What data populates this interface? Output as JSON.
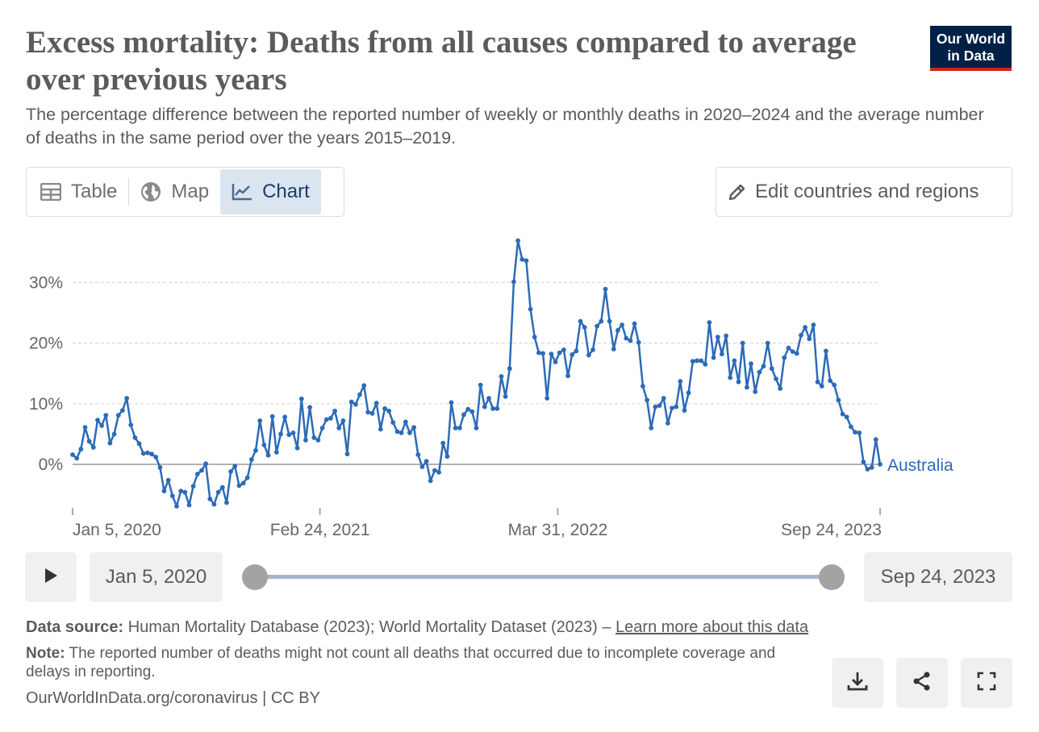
{
  "header": {
    "title": "Excess mortality: Deaths from all causes compared to average over previous years",
    "subtitle": "The percentage difference between the reported number of weekly or monthly deaths in 2020–2024 and the average number of deaths in the same period over the years 2015–2019.",
    "logo_line1": "Our World",
    "logo_line2": "in Data"
  },
  "tabs": [
    {
      "label": "Table",
      "icon": "table-icon",
      "active": false
    },
    {
      "label": "Map",
      "icon": "globe-icon",
      "active": false
    },
    {
      "label": "Chart",
      "icon": "line-chart-icon",
      "active": true
    }
  ],
  "edit_button": {
    "label": "Edit countries and regions",
    "icon": "pencil-icon"
  },
  "timeline": {
    "start_label": "Jan 5, 2020",
    "end_label": "Sep 24, 2023",
    "play_icon": "play-icon"
  },
  "footer": {
    "source_label": "Data source:",
    "source_text": "Human Mortality Database (2023); World Mortality Dataset (2023) –",
    "source_link": "Learn more about this data",
    "note_label": "Note:",
    "note_text": "The reported number of deaths might not count all deaths that occurred due to incomplete coverage and delays in reporting.",
    "credit": "OurWorldInData.org/coronavirus | CC BY"
  },
  "actions": [
    {
      "icon": "download-icon"
    },
    {
      "icon": "share-icon"
    },
    {
      "icon": "fullscreen-icon"
    }
  ],
  "colors": {
    "series": "#2c6bb8",
    "axis": "#999999",
    "grid": "#d9d9d9"
  },
  "chart_data": {
    "type": "line",
    "xlabel": "",
    "ylabel": "",
    "ylim": [
      -7,
      37
    ],
    "y_ticks": [
      0,
      10,
      20,
      30
    ],
    "y_tick_labels": [
      "0%",
      "10%",
      "20%",
      "30%"
    ],
    "x_tick_labels": [
      "Jan 5, 2020",
      "Feb 24, 2021",
      "Mar 31, 2022",
      "Sep 24, 2023"
    ],
    "x_tick_dates": [
      "2020-01-05",
      "2021-02-24",
      "2022-03-31",
      "2023-09-24"
    ],
    "grid": "horizontal",
    "series": [
      {
        "name": "Australia",
        "color": "#2c6bb8",
        "start_date": "2020-01-05",
        "end_date": "2023-09-24",
        "values": [
          1.6,
          1.0,
          2.5,
          6.1,
          3.8,
          2.8,
          7.3,
          6.4,
          8.1,
          3.5,
          5.0,
          8.1,
          8.9,
          10.9,
          6.5,
          4.4,
          3.4,
          1.8,
          1.9,
          1.7,
          1.2,
          -0.5,
          -4.4,
          -2.6,
          -5.2,
          -6.9,
          -4.4,
          -4.6,
          -6.7,
          -3.6,
          -1.6,
          -1.0,
          0.1,
          -5.7,
          -6.6,
          -4.6,
          -3.8,
          -6.3,
          -1.2,
          -0.3,
          -3.5,
          -3.1,
          -2.2,
          0.8,
          2.3,
          7.2,
          3.2,
          1.5,
          7.9,
          2.0,
          5.0,
          7.8,
          4.9,
          5.2,
          2.7,
          10.8,
          4.0,
          9.4,
          4.4,
          4.0,
          6.0,
          7.4,
          7.6,
          8.8,
          6.0,
          7.2,
          1.7,
          10.3,
          9.9,
          11.5,
          13.0,
          8.6,
          8.4,
          10.1,
          5.8,
          9.2,
          8.8,
          6.9,
          5.4,
          5.2,
          7.0,
          5.2,
          6.1,
          1.6,
          -0.4,
          0.5,
          -2.7,
          -1.0,
          -1.3,
          3.5,
          1.3,
          10.2,
          6.0,
          6.0,
          8.2,
          9.1,
          8.7,
          6.0,
          13.1,
          9.5,
          10.9,
          9.2,
          9.2,
          14.5,
          11.2,
          15.8,
          30.1,
          36.9,
          33.8,
          33.6,
          25.6,
          21.0,
          18.4,
          18.3,
          10.9,
          18.2,
          16.9,
          18.4,
          18.9,
          14.6,
          18.1,
          18.7,
          23.6,
          22.6,
          18.0,
          18.9,
          22.8,
          23.6,
          28.9,
          23.6,
          19.0,
          22.1,
          23.0,
          20.8,
          20.4,
          23.2,
          20.1,
          12.9,
          10.6,
          6.0,
          9.5,
          9.7,
          10.9,
          6.8,
          9.3,
          9.5,
          13.7,
          8.9,
          11.8,
          17.0,
          17.1,
          17.1,
          16.5,
          23.4,
          17.6,
          21.0,
          18.2,
          21.2,
          14.3,
          17.1,
          13.6,
          20.0,
          12.7,
          16.6,
          12.0,
          15.2,
          16.2,
          20.0,
          15.8,
          14.1,
          12.5,
          17.6,
          19.2,
          18.6,
          18.3,
          21.3,
          22.6,
          20.7,
          23.0,
          13.6,
          12.9,
          18.7,
          13.8,
          13.1,
          10.6,
          8.3,
          7.8,
          6.2,
          5.3,
          5.2,
          0.4,
          -0.8,
          -0.5,
          4.1,
          0.0
        ]
      }
    ]
  }
}
